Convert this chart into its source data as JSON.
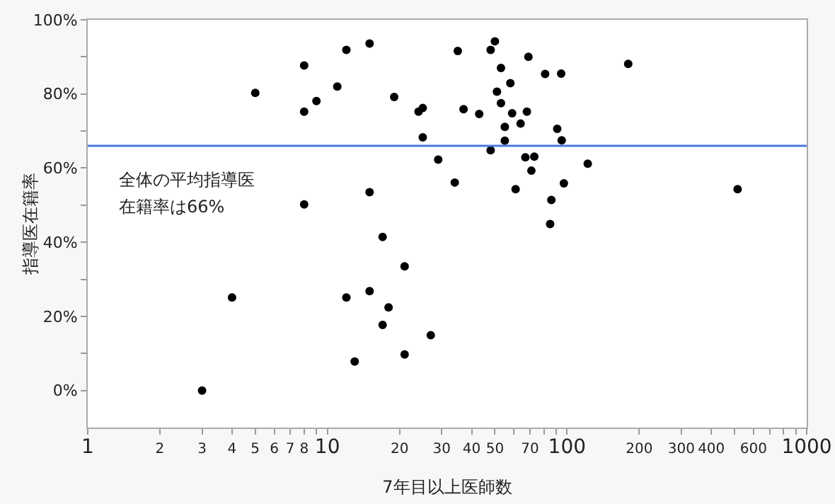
{
  "chart_data": {
    "type": "scatter",
    "xlabel": "7年目以上医師数",
    "ylabel": "指導医在籍率",
    "log": "x",
    "grid": false,
    "marker": "circle",
    "xlim": [
      1,
      1000
    ],
    "ylim": [
      -10,
      100
    ],
    "xticks": [
      1,
      2,
      3,
      4,
      5,
      6,
      7,
      8,
      {
        "value": 9,
        "label": null
      },
      10,
      20,
      30,
      40,
      50,
      {
        "value": 60,
        "label": null
      },
      70,
      {
        "value": 80,
        "label": null
      },
      {
        "value": 90,
        "label": null
      },
      100,
      200,
      300,
      400,
      {
        "value": 500,
        "label": null
      },
      600,
      {
        "value": 700,
        "label": null
      },
      {
        "value": 800,
        "label": null
      },
      {
        "value": 900,
        "label": null
      },
      1000
    ],
    "yticks": [
      {
        "value": 0,
        "label": "0%"
      },
      {
        "value": 10,
        "label": null
      },
      {
        "value": 20,
        "label": "20%"
      },
      {
        "value": 30,
        "label": null
      },
      {
        "value": 40,
        "label": "40%"
      },
      {
        "value": 50,
        "label": null
      },
      {
        "value": 60,
        "label": "60%"
      },
      {
        "value": 70,
        "label": null
      },
      {
        "value": 80,
        "label": "80%"
      },
      {
        "value": 90,
        "label": null
      },
      {
        "value": 100,
        "label": "100%"
      }
    ],
    "ref_lines": [
      {
        "axis": "y",
        "value": 66,
        "color": "#4a78e0"
      }
    ],
    "annotations": [
      "全体の平均指導医",
      "在籍率は66%"
    ],
    "series": [
      {
        "color": "#000000",
        "x": [
          5,
          8,
          8,
          9,
          11,
          12,
          15,
          19,
          24,
          25,
          25,
          29,
          8,
          15,
          17,
          35,
          48,
          50,
          69,
          53,
          81,
          94.5,
          180,
          58,
          51,
          53,
          37,
          43,
          59,
          68,
          55,
          64,
          91,
          55,
          95,
          48,
          67,
          73,
          71,
          122,
          34,
          61,
          97,
          86,
          85,
          515,
          3,
          4,
          21,
          12,
          15,
          18,
          17,
          27,
          21,
          13
        ],
        "values": [
          80.3,
          87.7,
          75.2,
          78.1,
          82.0,
          91.9,
          93.6,
          79.2,
          75.2,
          76.2,
          68.3,
          62.3,
          50.2,
          53.5,
          41.4,
          91.6,
          91.9,
          94.2,
          90.0,
          87.0,
          85.4,
          85.5,
          88.1,
          82.9,
          80.6,
          77.5,
          75.9,
          74.6,
          74.8,
          75.2,
          71.1,
          72.0,
          70.6,
          67.4,
          67.5,
          64.8,
          62.9,
          63.1,
          59.3,
          61.2,
          56.1,
          54.3,
          55.9,
          51.4,
          44.9,
          54.3,
          0,
          25.1,
          33.5,
          25.1,
          26.8,
          22.4,
          17.7,
          14.9,
          9.7,
          7.8
        ]
      }
    ]
  }
}
